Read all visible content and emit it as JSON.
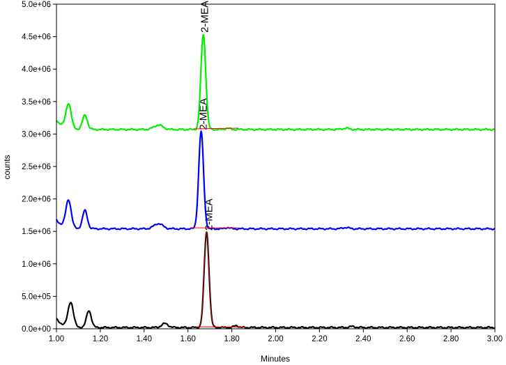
{
  "chart_data": {
    "type": "line",
    "xlabel": "Minutes",
    "ylabel": "counts",
    "xlim": [
      1.0,
      3.0
    ],
    "ylim": [
      0,
      5000000
    ],
    "x_ticks": [
      "1.00",
      "1.20",
      "1.40",
      "1.60",
      "1.80",
      "2.00",
      "2.20",
      "2.40",
      "2.60",
      "2.80",
      "3.00"
    ],
    "y_ticks": [
      "0.0e+00",
      "5.0e+05",
      "1.0e+06",
      "1.5e+06",
      "2.0e+06",
      "2.5e+06",
      "3.0e+06",
      "3.5e+06",
      "4.0e+06",
      "4.5e+06",
      "5.0e+06"
    ],
    "grid": false,
    "legend": "none",
    "peak_label": "2-MEA",
    "series": [
      {
        "color": "#000000",
        "baseline": 20000,
        "trail": [
          {
            "x": 2.35,
            "y": 35000
          }
        ],
        "peaks": [
          {
            "x": 1.065,
            "h": 380000,
            "w": 0.012
          },
          {
            "x": 1.148,
            "h": 260000,
            "w": 0.011
          },
          {
            "x": 1.495,
            "h": 60000,
            "w": 0.015
          },
          {
            "x": 1.685,
            "h": 1470000,
            "w": 0.011
          },
          {
            "x": 1.82,
            "h": 30000,
            "w": 0.01
          }
        ],
        "start_y": 150000,
        "integration": {
          "start": 1.635,
          "end": 1.865,
          "y_start": 30000,
          "y_end": 25000
        },
        "fit_peak_x": 1.685,
        "label_x": 1.695
      },
      {
        "color": "#0000ff",
        "baseline": 1540000,
        "trail": [
          {
            "x": 2.32,
            "y": 1560000
          }
        ],
        "peaks": [
          {
            "x": 1.055,
            "h": 430000,
            "w": 0.012
          },
          {
            "x": 1.13,
            "h": 280000,
            "w": 0.011
          },
          {
            "x": 1.465,
            "h": 80000,
            "w": 0.02
          },
          {
            "x": 1.66,
            "h": 1500000,
            "w": 0.011
          },
          {
            "x": 1.78,
            "h": 20000,
            "w": 0.01
          }
        ],
        "start_y": 1680000,
        "integration": {
          "start": 1.615,
          "end": 1.83,
          "y_start": 1555000,
          "y_end": 1555000
        },
        "fit_peak_x": null,
        "label_x": 1.67
      },
      {
        "color": "#00ee00",
        "baseline": 3070000,
        "trail": [
          {
            "x": 2.32,
            "y": 3090000
          }
        ],
        "peaks": [
          {
            "x": 1.055,
            "h": 380000,
            "w": 0.012
          },
          {
            "x": 1.13,
            "h": 220000,
            "w": 0.011
          },
          {
            "x": 1.465,
            "h": 70000,
            "w": 0.02
          },
          {
            "x": 1.67,
            "h": 1470000,
            "w": 0.011
          },
          {
            "x": 1.78,
            "h": 20000,
            "w": 0.01
          }
        ],
        "start_y": 3220000,
        "integration": {
          "start": 1.625,
          "end": 1.83,
          "y_start": 3080000,
          "y_end": 3090000
        },
        "fit_peak_x": null,
        "label_x": 1.675
      }
    ]
  }
}
